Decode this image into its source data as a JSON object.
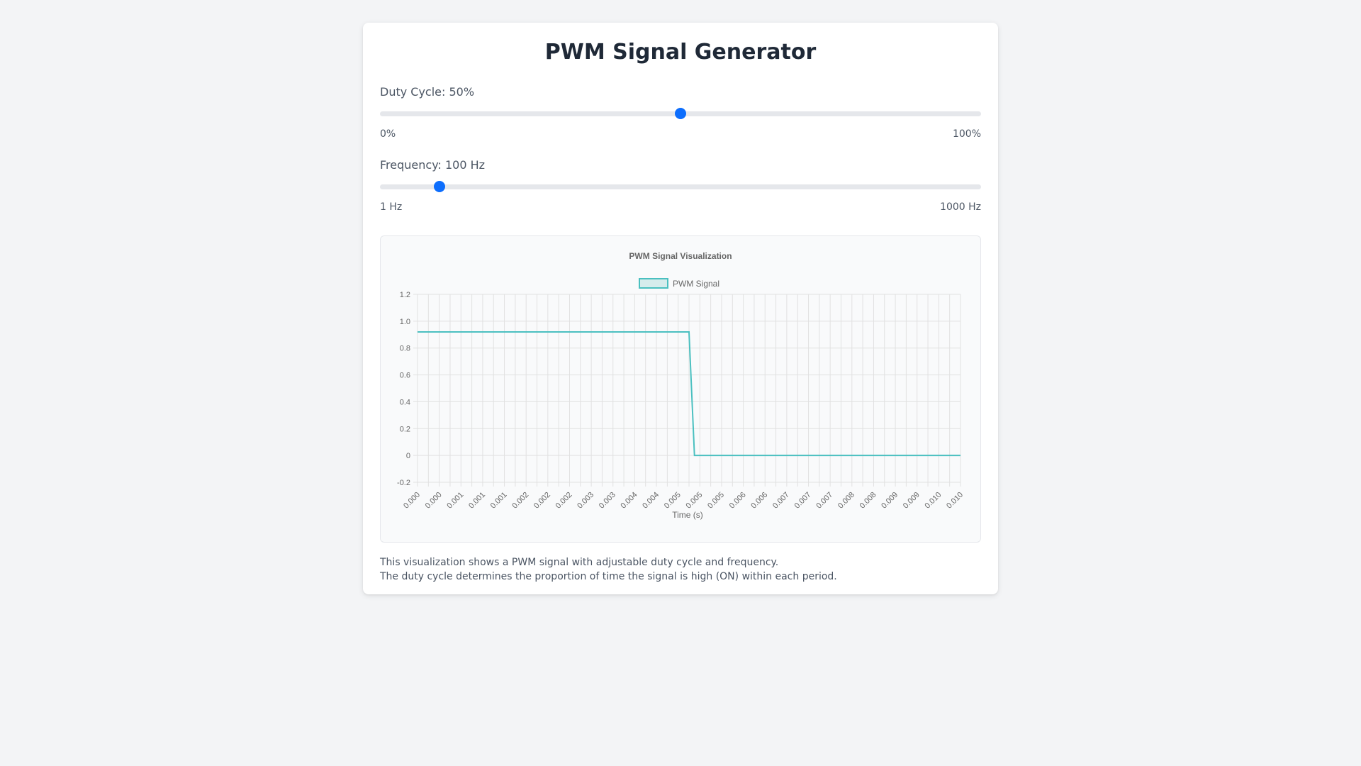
{
  "app": {
    "title": "PWM Signal Generator"
  },
  "duty_cycle": {
    "label": "Duty Cycle: 50%",
    "value": 50,
    "min": 0,
    "max": 100,
    "min_label": "0%",
    "max_label": "100%"
  },
  "frequency": {
    "label": "Frequency: 100 Hz",
    "value": 100,
    "min": 1,
    "max": 1000,
    "min_label": "1 Hz",
    "max_label": "1000 Hz"
  },
  "colors": {
    "accent": "#0d6efd",
    "signal_line": "#4bc0c0",
    "signal_fill": "#d6ecec"
  },
  "chart_data": {
    "type": "line",
    "title": "PWM Signal Visualization",
    "xlabel": "Time (s)",
    "ylabel": "",
    "ylim": [
      -0.2,
      1.2
    ],
    "y_ticks": [
      "1.2",
      "1.0",
      "0.8",
      "0.6",
      "0.4",
      "0.2",
      "0",
      "-0.2"
    ],
    "x_tick_labels": [
      "0.000",
      "0.000",
      "0.001",
      "0.001",
      "0.001",
      "0.002",
      "0.002",
      "0.002",
      "0.003",
      "0.003",
      "0.004",
      "0.004",
      "0.005",
      "0.005",
      "0.005",
      "0.006",
      "0.006",
      "0.007",
      "0.007",
      "0.007",
      "0.008",
      "0.008",
      "0.009",
      "0.009",
      "0.010",
      "0.010"
    ],
    "grid": true,
    "legend_position": "top",
    "series": [
      {
        "name": "PWM Signal",
        "x": [
          0,
          0.0017,
          0.005,
          0.0051,
          0.01
        ],
        "values": [
          0.92,
          0.92,
          0.92,
          0,
          0
        ]
      }
    ]
  },
  "description": {
    "line1": "This visualization shows a PWM signal with adjustable duty cycle and frequency.",
    "line2": "The duty cycle determines the proportion of time the signal is high (ON) within each period."
  }
}
